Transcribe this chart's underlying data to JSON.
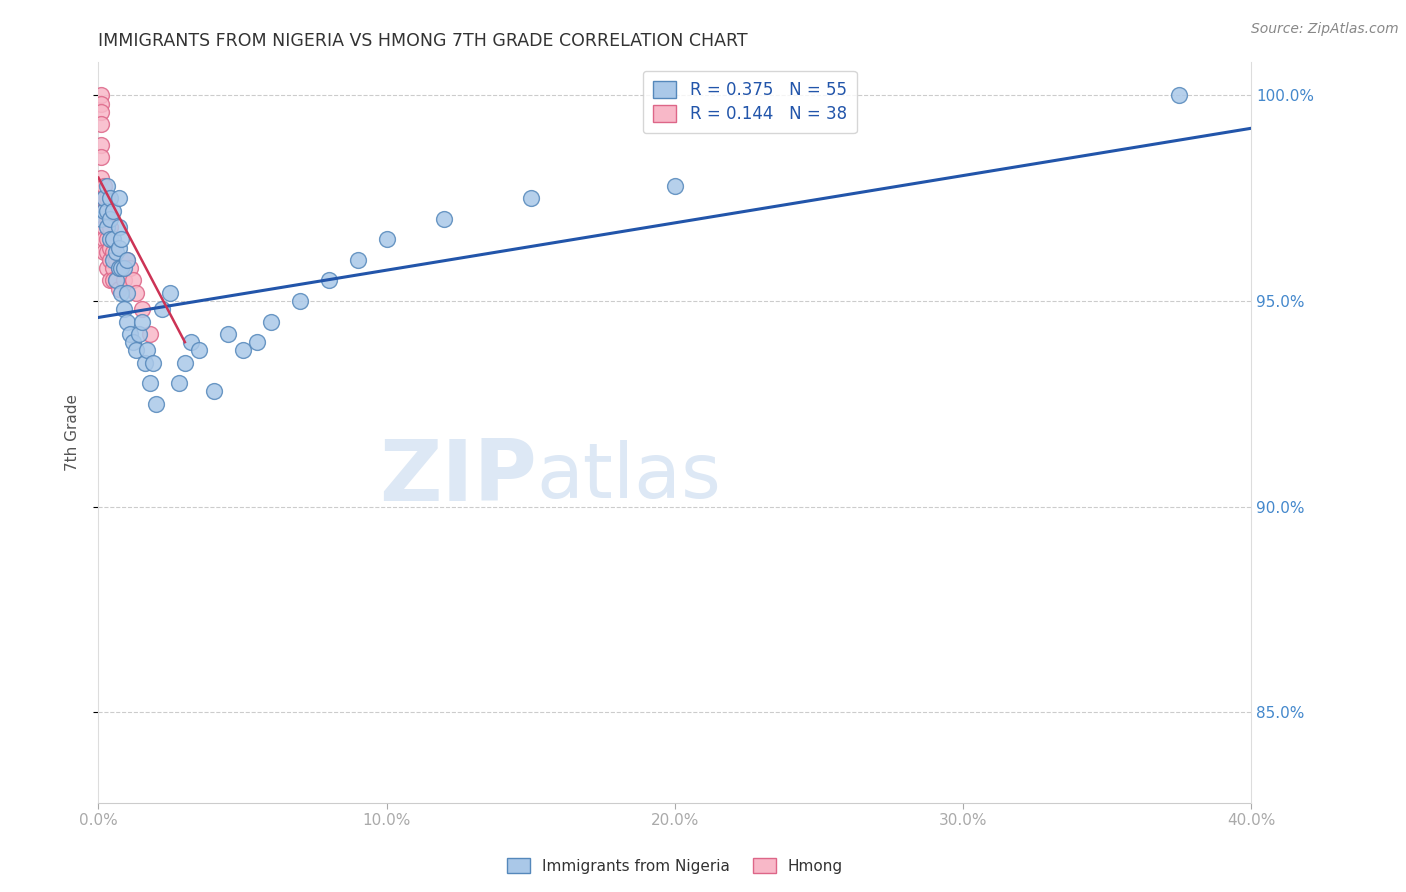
{
  "title": "IMMIGRANTS FROM NIGERIA VS HMONG 7TH GRADE CORRELATION CHART",
  "source": "Source: ZipAtlas.com",
  "ylabel": "7th Grade",
  "xmin": 0.0,
  "xmax": 0.4,
  "ymin": 0.828,
  "ymax": 1.008,
  "ytick_positions": [
    0.85,
    0.9,
    0.95,
    1.0
  ],
  "ytick_labels": [
    "85.0%",
    "90.0%",
    "95.0%",
    "100.0%"
  ],
  "xtick_positions": [
    0.0,
    0.1,
    0.2,
    0.3,
    0.4
  ],
  "xtick_labels": [
    "0.0%",
    "10.0%",
    "20.0%",
    "30.0%",
    "40.0%"
  ],
  "legend1_label": "Immigrants from Nigeria",
  "legend2_label": "Hmong",
  "R_nigeria": 0.375,
  "N_nigeria": 55,
  "R_hmong": 0.144,
  "N_hmong": 38,
  "nigeria_face_color": "#aac8e8",
  "nigeria_edge_color": "#5588bb",
  "hmong_face_color": "#f8b8c8",
  "hmong_edge_color": "#dd6688",
  "nigeria_line_color": "#2255aa",
  "hmong_line_color": "#cc3355",
  "watermark_color": "#dde8f5",
  "grid_color": "#cccccc",
  "title_color": "#333333",
  "axis_label_color": "#555555",
  "right_axis_color": "#4488cc",
  "source_color": "#888888",
  "nigeria_x": [
    0.001,
    0.002,
    0.002,
    0.003,
    0.003,
    0.003,
    0.004,
    0.004,
    0.004,
    0.005,
    0.005,
    0.005,
    0.006,
    0.006,
    0.007,
    0.007,
    0.007,
    0.007,
    0.008,
    0.008,
    0.008,
    0.009,
    0.009,
    0.01,
    0.01,
    0.01,
    0.011,
    0.012,
    0.013,
    0.014,
    0.015,
    0.016,
    0.017,
    0.018,
    0.019,
    0.02,
    0.022,
    0.025,
    0.028,
    0.03,
    0.032,
    0.035,
    0.04,
    0.045,
    0.05,
    0.055,
    0.06,
    0.07,
    0.08,
    0.09,
    0.1,
    0.12,
    0.15,
    0.2,
    0.375
  ],
  "nigeria_y": [
    0.97,
    0.972,
    0.975,
    0.968,
    0.972,
    0.978,
    0.965,
    0.97,
    0.975,
    0.96,
    0.965,
    0.972,
    0.955,
    0.962,
    0.958,
    0.963,
    0.968,
    0.975,
    0.952,
    0.958,
    0.965,
    0.948,
    0.958,
    0.945,
    0.952,
    0.96,
    0.942,
    0.94,
    0.938,
    0.942,
    0.945,
    0.935,
    0.938,
    0.93,
    0.935,
    0.925,
    0.948,
    0.952,
    0.93,
    0.935,
    0.94,
    0.938,
    0.928,
    0.942,
    0.938,
    0.94,
    0.945,
    0.95,
    0.955,
    0.96,
    0.965,
    0.97,
    0.975,
    0.978,
    1.0
  ],
  "hmong_x": [
    0.001,
    0.001,
    0.001,
    0.001,
    0.001,
    0.001,
    0.001,
    0.001,
    0.002,
    0.002,
    0.002,
    0.002,
    0.002,
    0.002,
    0.003,
    0.003,
    0.003,
    0.003,
    0.003,
    0.004,
    0.004,
    0.004,
    0.004,
    0.005,
    0.005,
    0.005,
    0.006,
    0.006,
    0.007,
    0.007,
    0.008,
    0.009,
    0.01,
    0.011,
    0.012,
    0.013,
    0.015,
    0.018
  ],
  "hmong_y": [
    1.0,
    0.998,
    0.996,
    0.993,
    0.988,
    0.985,
    0.98,
    0.975,
    0.978,
    0.975,
    0.972,
    0.968,
    0.965,
    0.962,
    0.975,
    0.97,
    0.965,
    0.962,
    0.958,
    0.968,
    0.963,
    0.96,
    0.955,
    0.962,
    0.958,
    0.955,
    0.96,
    0.955,
    0.958,
    0.953,
    0.96,
    0.955,
    0.96,
    0.958,
    0.955,
    0.952,
    0.948,
    0.942
  ],
  "nigeria_trendline_x": [
    0.0,
    0.4
  ],
  "nigeria_trendline_y": [
    0.946,
    0.992
  ],
  "hmong_trendline_x": [
    0.0,
    0.03
  ],
  "hmong_trendline_y": [
    0.98,
    0.94
  ]
}
